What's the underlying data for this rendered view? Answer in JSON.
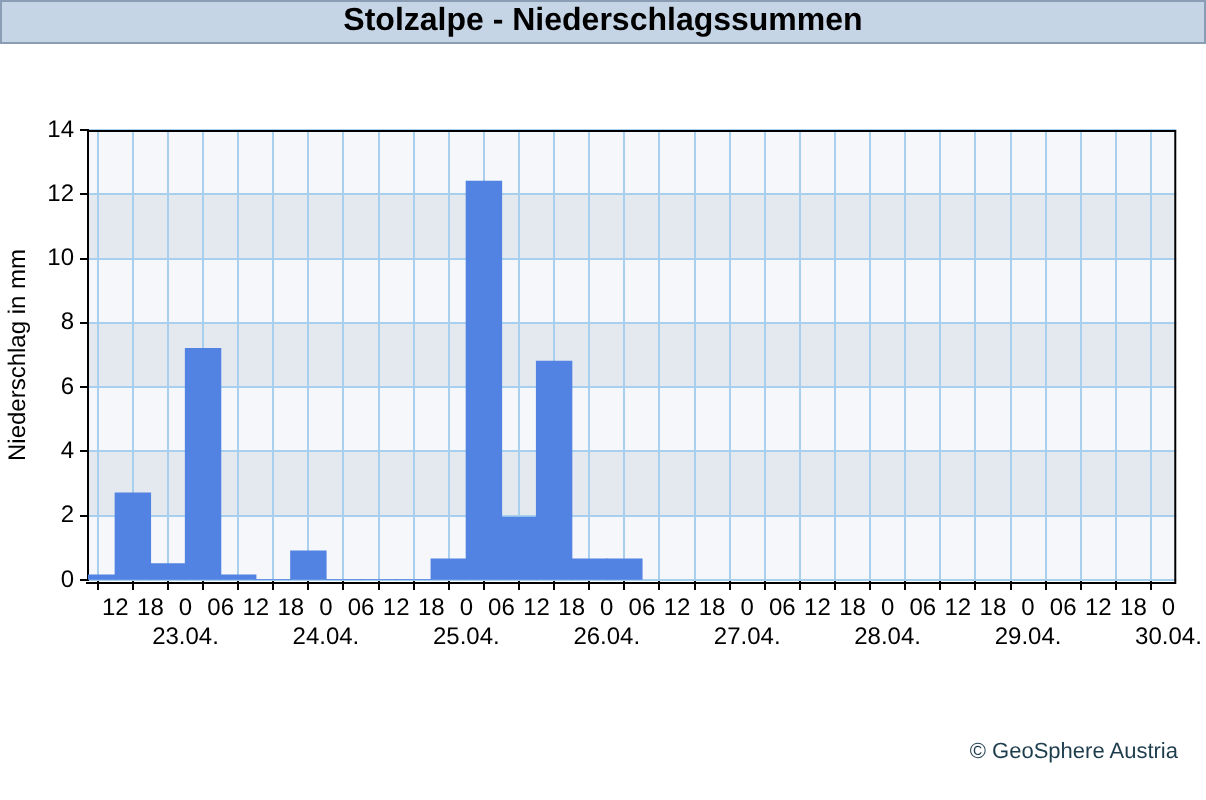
{
  "chart_data": {
    "type": "bar",
    "title": "Stolzalpe - Niederschlagssummen",
    "ylabel": "Niederschlag in mm",
    "x": [
      "--04-22T09:00",
      "--04-22T15:00",
      "--04-22T21:00",
      "--04-23T03:00",
      "--04-23T09:00",
      "--04-23T15:00",
      "--04-23T21:00",
      "--04-24T03:00",
      "--04-24T09:00",
      "--04-24T15:00",
      "--04-24T21:00",
      "--04-25T03:00",
      "--04-25T09:00",
      "--04-25T15:00",
      "--04-25T21:00",
      "--04-26T03:00"
    ],
    "values": [
      0.15,
      2.7,
      0.5,
      7.2,
      0.15,
      0,
      0.9,
      0,
      0,
      0,
      0.65,
      12.4,
      1.95,
      6.8,
      0.65,
      0.65
    ],
    "color": "#5282e2",
    "xlim": [
      "--04-22T07:20",
      "--04-30T01:20"
    ],
    "xticks": [
      {
        "value": "--04-22T12:00",
        "label": "12"
      },
      {
        "value": "--04-22T18:00",
        "label": "18"
      },
      {
        "value": "--04-23T00:00",
        "label": "0\n23.04."
      },
      {
        "value": "--04-23T06:00",
        "label": "06"
      },
      {
        "value": "--04-23T12:00",
        "label": "12"
      },
      {
        "value": "--04-23T18:00",
        "label": "18"
      },
      {
        "value": "--04-24T00:00",
        "label": "0\n24.04."
      },
      {
        "value": "--04-24T06:00",
        "label": "06"
      },
      {
        "value": "--04-24T12:00",
        "label": "12"
      },
      {
        "value": "--04-24T18:00",
        "label": "18"
      },
      {
        "value": "--04-25T00:00",
        "label": "0\n25.04."
      },
      {
        "value": "--04-25T06:00",
        "label": "06"
      },
      {
        "value": "--04-25T12:00",
        "label": "12"
      },
      {
        "value": "--04-25T18:00",
        "label": "18"
      },
      {
        "value": "--04-26T00:00",
        "label": "0\n26.04."
      },
      {
        "value": "--04-26T06:00",
        "label": "06"
      },
      {
        "value": "--04-26T12:00",
        "label": "12"
      },
      {
        "value": "--04-26T18:00",
        "label": "18"
      },
      {
        "value": "--04-27T00:00",
        "label": "0\n27.04."
      },
      {
        "value": "--04-27T06:00",
        "label": "06"
      },
      {
        "value": "--04-27T12:00",
        "label": "12"
      },
      {
        "value": "--04-27T18:00",
        "label": "18"
      },
      {
        "value": "--04-28T00:00",
        "label": "0\n28.04."
      },
      {
        "value": "--04-28T06:00",
        "label": "06"
      },
      {
        "value": "--04-28T12:00",
        "label": "12"
      },
      {
        "value": "--04-28T18:00",
        "label": "18"
      },
      {
        "value": "--04-29T00:00",
        "label": "0\n29.04."
      },
      {
        "value": "--04-29T06:00",
        "label": "06"
      },
      {
        "value": "--04-29T12:00",
        "label": "12"
      },
      {
        "value": "--04-29T18:00",
        "label": "18"
      },
      {
        "value": "--04-30T00:00",
        "label": "0\n30.04."
      }
    ],
    "ylim": [
      0,
      14
    ],
    "yticks": [
      0,
      2,
      4,
      6,
      8,
      10,
      12,
      14
    ],
    "grid": true,
    "annotations": [
      "© GeoSphere Austria"
    ]
  }
}
